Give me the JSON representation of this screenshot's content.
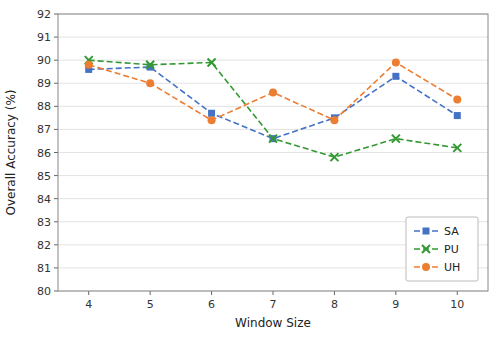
{
  "chart_data": {
    "type": "line",
    "xlabel": "Window Size",
    "ylabel": "Overall Accuracy (%)",
    "x": [
      4,
      5,
      6,
      7,
      8,
      9,
      10
    ],
    "series": [
      {
        "name": "SA",
        "color": "#4472C4",
        "marker": "square",
        "line_style": "dashed",
        "values": [
          89.6,
          89.7,
          87.7,
          86.6,
          87.5,
          89.3,
          87.6
        ]
      },
      {
        "name": "PU",
        "color": "#339933",
        "marker": "x",
        "line_style": "dashed",
        "values": [
          90.0,
          89.8,
          89.9,
          86.6,
          85.8,
          86.6,
          86.2
        ]
      },
      {
        "name": "UH",
        "color": "#ED7D31",
        "marker": "circle",
        "line_style": "dashed",
        "values": [
          89.8,
          89.0,
          87.4,
          88.6,
          87.4,
          89.9,
          88.3
        ]
      }
    ],
    "xlim": [
      3.5,
      10.5
    ],
    "xticks": [
      4,
      5,
      6,
      7,
      8,
      9,
      10
    ],
    "ylim": [
      80,
      92
    ],
    "yticks": [
      80,
      81,
      82,
      83,
      84,
      85,
      86,
      87,
      88,
      89,
      90,
      91,
      92
    ],
    "grid": true,
    "legend": "lower right"
  }
}
